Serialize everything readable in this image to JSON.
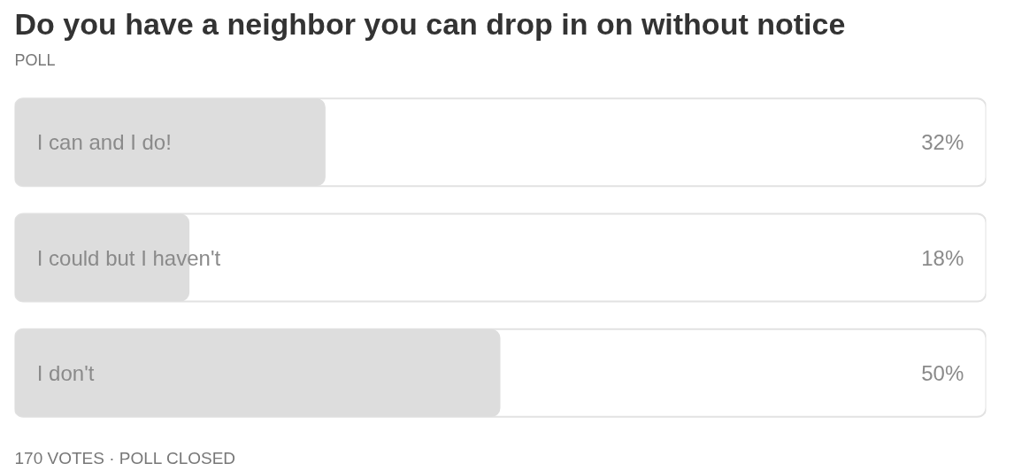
{
  "chart_data": {
    "type": "bar",
    "orientation": "horizontal",
    "title": "Do you have a neighbor you can drop in on without notice",
    "annotations": [
      "POLL",
      "170 VOTES · POLL CLOSED"
    ],
    "categories": [
      "I can and I do!",
      "I could but I haven't",
      "I don't"
    ],
    "values": [
      32,
      18,
      50
    ],
    "value_labels": [
      "32%",
      "18%",
      "50%"
    ],
    "color": "#dddddd",
    "xlim": [
      0,
      100
    ]
  }
}
